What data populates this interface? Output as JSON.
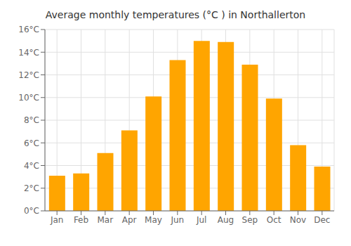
{
  "chart_data": {
    "type": "bar",
    "title": "Average monthly temperatures (°C ) in Northallerton",
    "categories": [
      "Jan",
      "Feb",
      "Mar",
      "Apr",
      "May",
      "Jun",
      "Jul",
      "Aug",
      "Sep",
      "Oct",
      "Nov",
      "Dec"
    ],
    "values": [
      3.1,
      3.3,
      5.1,
      7.1,
      10.1,
      13.3,
      15.0,
      14.9,
      12.9,
      9.9,
      5.8,
      3.9
    ],
    "color": "#FFA500",
    "ylim": [
      0,
      16
    ],
    "yticks": [
      {
        "value": 0,
        "label": "0°C"
      },
      {
        "value": 2,
        "label": "2°C"
      },
      {
        "value": 4,
        "label": "4°C"
      },
      {
        "value": 6,
        "label": "6°C"
      },
      {
        "value": 8,
        "label": "8°C"
      },
      {
        "value": 10,
        "label": "10°C"
      },
      {
        "value": 12,
        "label": "12°C"
      },
      {
        "value": 14,
        "label": "14°C"
      },
      {
        "value": 16,
        "label": "16°C"
      }
    ],
    "grid": true
  }
}
